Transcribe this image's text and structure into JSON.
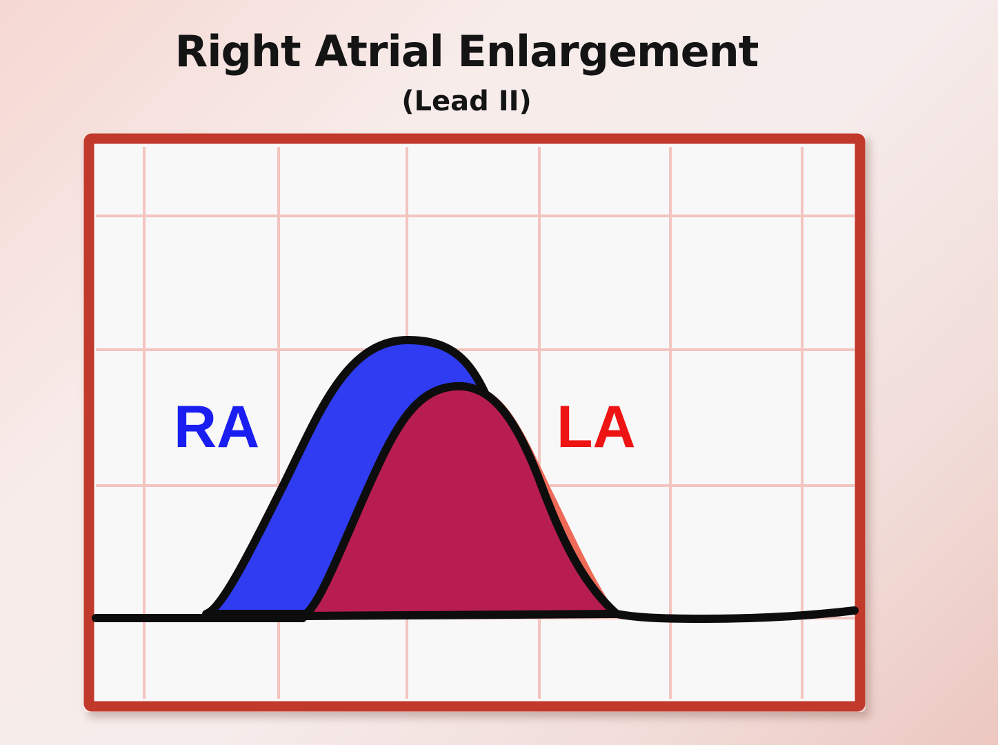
{
  "title": "Right Atrial Enlargement",
  "subtitle": "(Lead II)",
  "labels": {
    "ra": "RA",
    "la": "LA"
  },
  "colors": {
    "frame_border": "#c0392b",
    "grid": "#f4c4c0",
    "ra_wave_fill": "#2f3cf2",
    "la_wave_fill": "#b81d52",
    "la_overhang_fill": "#ee6a58",
    "ra_label": "#1a1ef0",
    "la_label": "#ee1414",
    "trace": "#0d0d0d"
  }
}
